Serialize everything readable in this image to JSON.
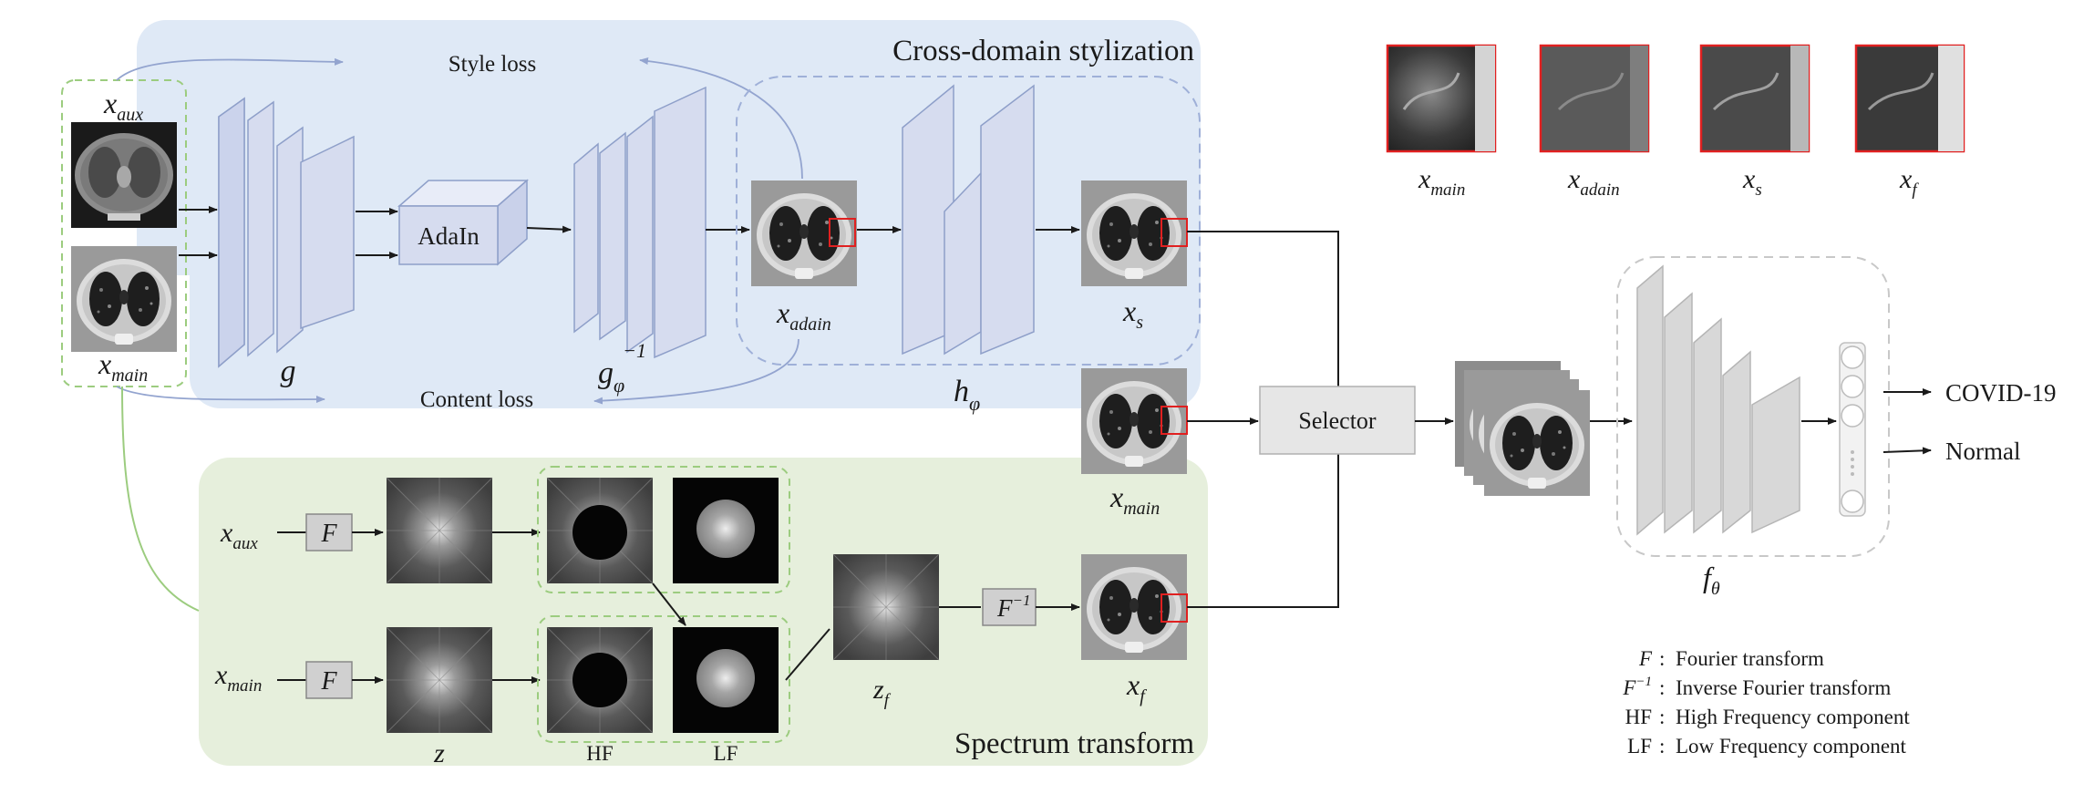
{
  "diagram": {
    "cross_domain": {
      "title": "Cross-domain stylization",
      "style_loss": "Style loss",
      "content_loss": "Content loss",
      "adain": "AdaIn",
      "g": "g",
      "g_inv_base": "g",
      "g_inv_sub": "φ",
      "g_inv_sup": "−1",
      "h_base": "h",
      "h_sub": "φ",
      "x_adain_base": "x",
      "x_adain_sub": "adain",
      "x_s_base": "x",
      "x_s_sub": "s"
    },
    "inputs": {
      "x_aux_base": "x",
      "x_aux_sub": "aux",
      "x_main_base": "x",
      "x_main_sub": "main"
    },
    "spectrum": {
      "title": "Spectrum transform",
      "x_aux_base": "x",
      "x_aux_sub": "aux",
      "x_main_base": "x",
      "x_main_sub": "main",
      "F": "F",
      "F_inv_base": "F",
      "F_inv_sup": "−1",
      "z": "z",
      "hf": "HF",
      "lf": "LF",
      "z_f_base": "z",
      "z_f_sub": "f",
      "x_f_base": "x",
      "x_f_sub": "f",
      "x_main_mid_base": "x",
      "x_main_mid_sub": "main"
    },
    "selector": "Selector",
    "classifier": {
      "f_base": "f",
      "f_sub": "θ",
      "output_covid": "COVID-19",
      "output_normal": "Normal"
    },
    "crops": [
      {
        "base": "x",
        "sub": "main"
      },
      {
        "base": "x",
        "sub": "adain"
      },
      {
        "base": "x",
        "sub": "s"
      },
      {
        "base": "x",
        "sub": "f"
      }
    ],
    "legend": [
      {
        "symbol": "F",
        "sup": "",
        "desc": "Fourier transform"
      },
      {
        "symbol": "F",
        "sup": "−1",
        "desc": "Inverse Fourier transform"
      },
      {
        "symbol": "HF",
        "sup": "",
        "desc": "High Frequency component"
      },
      {
        "symbol": "LF",
        "sup": "",
        "desc": "Low Frequency component"
      }
    ],
    "colors": {
      "cross_domain_bg": "#dfe9f6",
      "spectrum_bg": "#e6efdc",
      "layer_fill": "#d6dcef",
      "layer_stroke": "#8e9fc9",
      "classifier_layer": "#d8d8d8",
      "crop_border": "#e02020",
      "dashed_blue": "#9fb0d8",
      "dashed_green": "#9ccc7f"
    }
  }
}
